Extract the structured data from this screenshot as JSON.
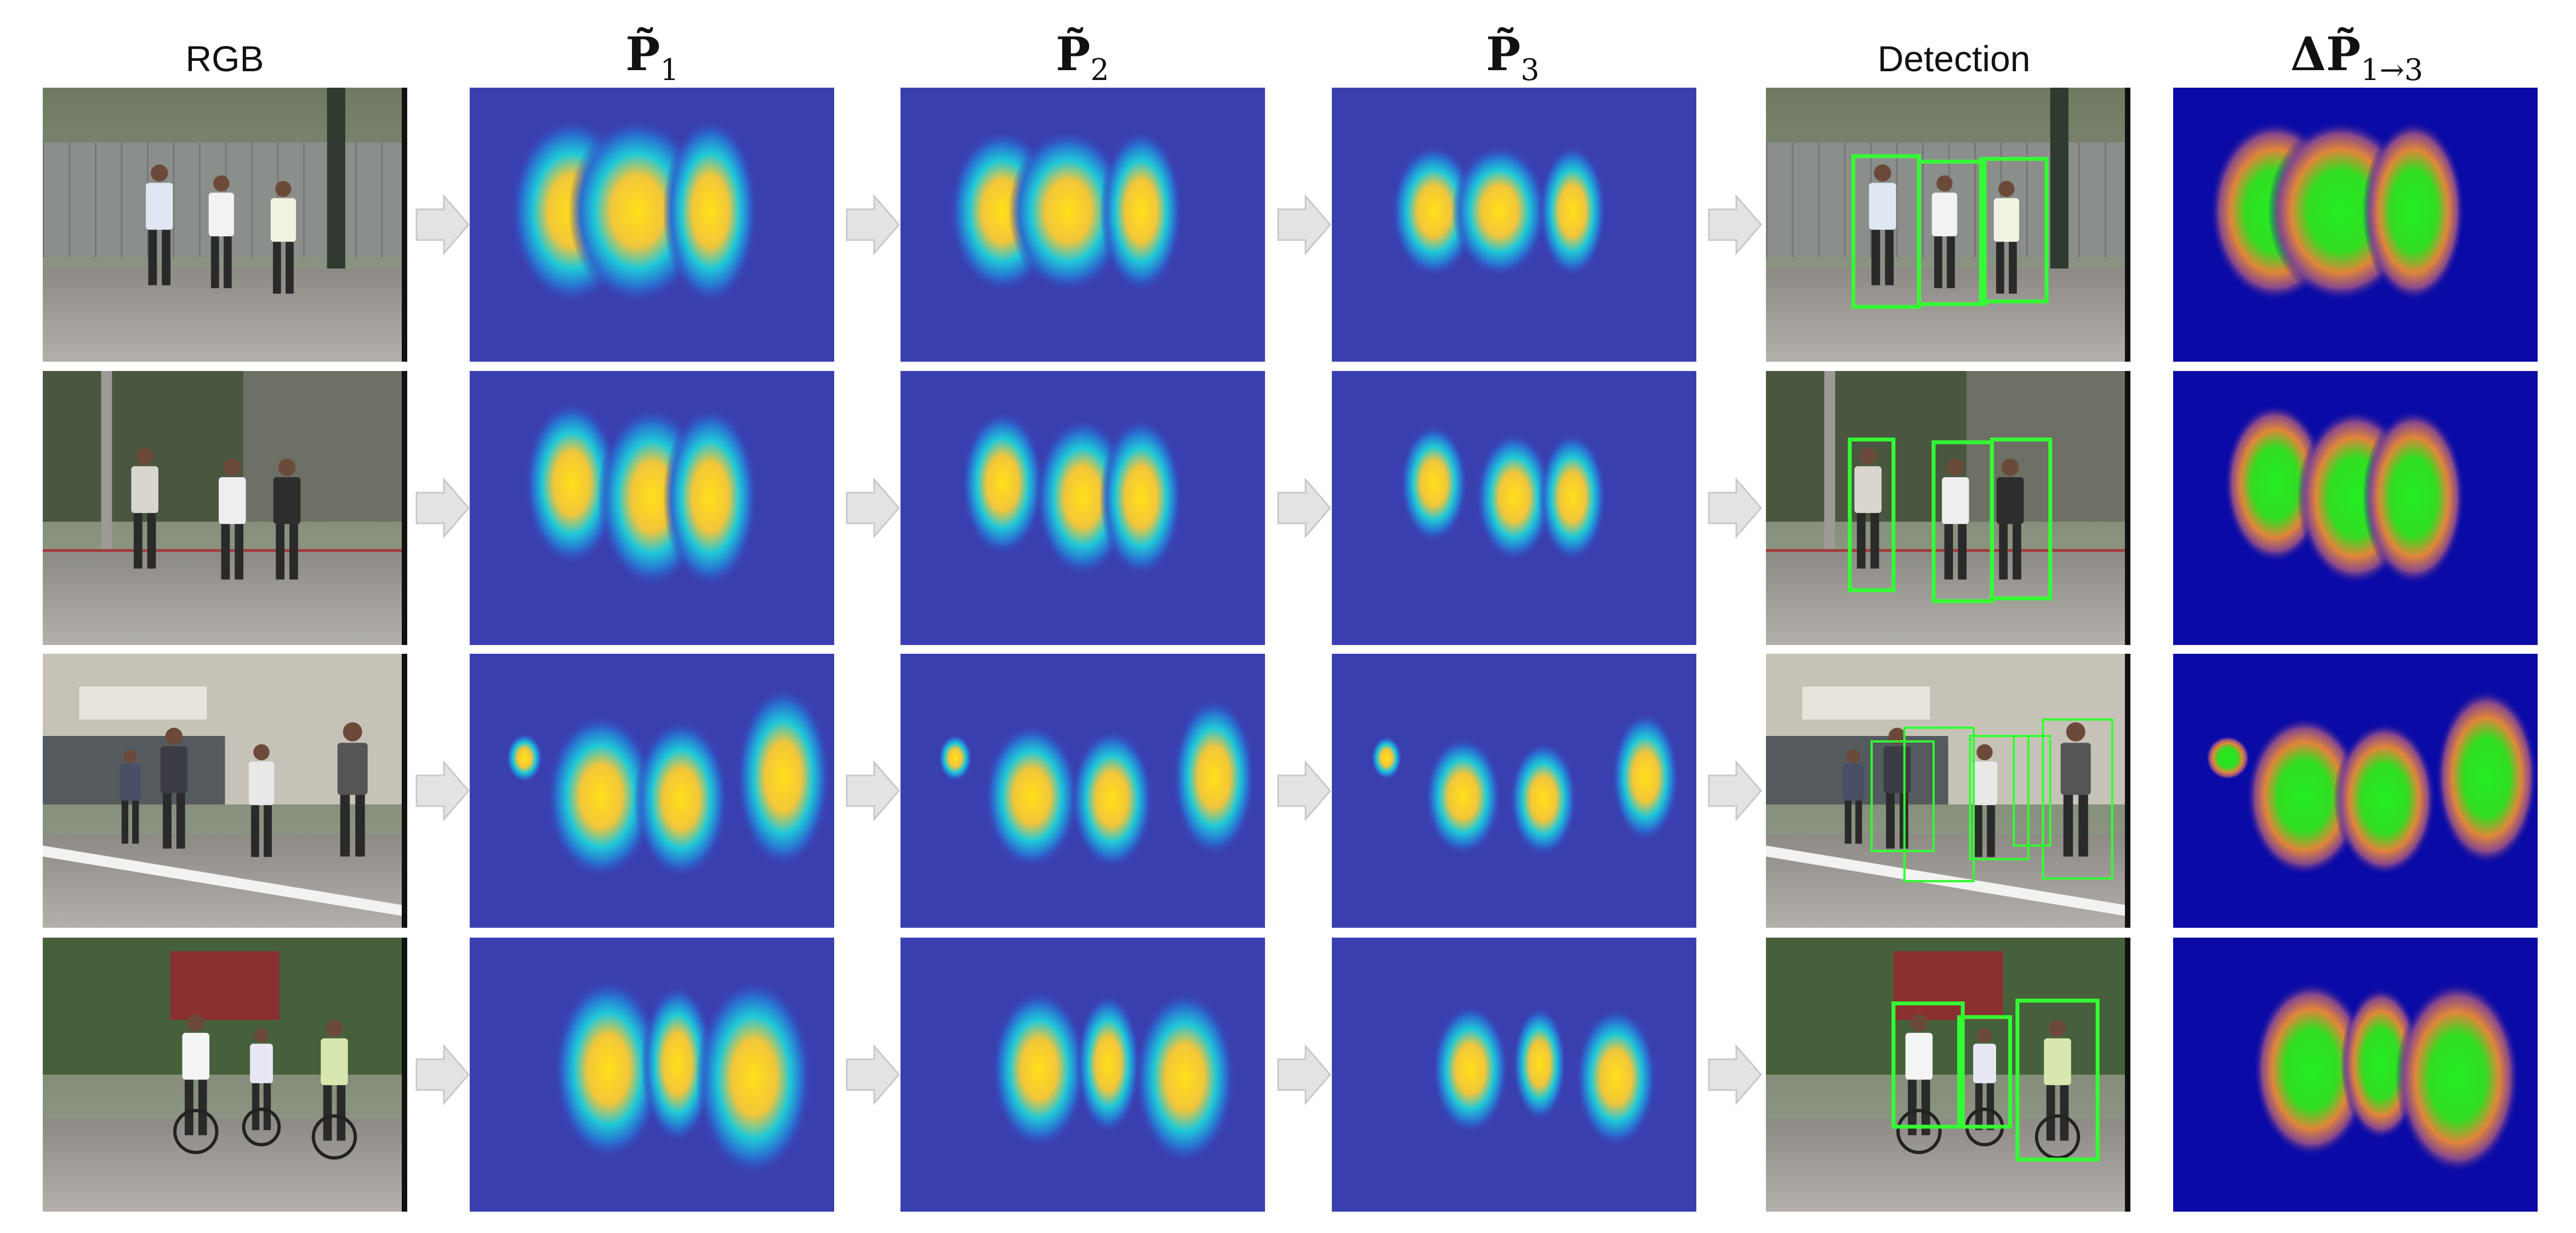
{
  "figure": {
    "columns": [
      {
        "label": "RGB",
        "kind": "photo"
      },
      {
        "label": "P̃",
        "subscript": "1",
        "kind": "heatmap"
      },
      {
        "label": "P̃",
        "subscript": "2",
        "kind": "heatmap"
      },
      {
        "label": "P̃",
        "subscript": "3",
        "kind": "heatmap"
      },
      {
        "label": "Detection",
        "kind": "photo-boxes"
      },
      {
        "label": "ΔP̃",
        "subscript": "1→3",
        "kind": "diff"
      }
    ],
    "rows": [
      {
        "scene": "sidewalk-three-pedestrians",
        "people": 3,
        "detections": 3
      },
      {
        "scene": "street-corner-three-pedestrians",
        "people": 3,
        "detections": 3
      },
      {
        "scene": "crosswalk-four-pedestrians",
        "people": 4,
        "detections": 5
      },
      {
        "scene": "road-three-cyclists",
        "people": 3,
        "detections": 3
      }
    ],
    "colors": {
      "heatmap_bg": "#3a3fb0",
      "heatmap_peak": "#ffd21e",
      "diff_bg": "#0a0aa6",
      "diff_peak": "#22e622",
      "detection_box": "#33ff33",
      "arrow": "#e3e3e3"
    },
    "icons": {
      "arrow": "right-arrow-icon"
    }
  }
}
